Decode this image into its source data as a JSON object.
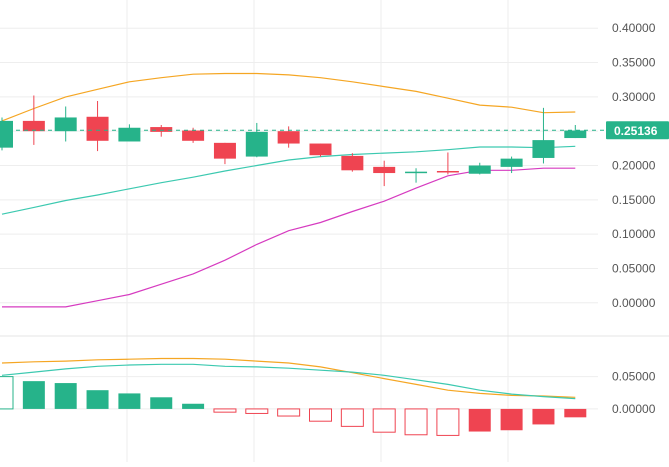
{
  "colors": {
    "up": "#26b38a",
    "down": "#ef4451",
    "upper_band": "#f5a623",
    "middle_band": "#3cc9b0",
    "lower_band": "#d63bc0",
    "grid": "#eeeeee",
    "axis_text": "#555555",
    "price_tag_bg": "#26b38a",
    "price_tag_text": "#ffffff",
    "macd_line": "#f5a623",
    "signal_line": "#3cc9b0"
  },
  "chart_data": [
    {
      "type": "candlestick",
      "panel": "price",
      "y_tick_labels": [
        "0.40000",
        "0.35000",
        "0.30000",
        "0.25000",
        "0.20000",
        "0.15000",
        "0.10000",
        "0.05000",
        "0.00000"
      ],
      "ylim": [
        -0.012,
        0.412
      ],
      "current_price_label": "0.25136",
      "current_price": 0.25136,
      "grid": true,
      "candles": [
        {
          "open": 0.226,
          "close": 0.265,
          "high": 0.27,
          "low": 0.222
        },
        {
          "open": 0.265,
          "close": 0.25,
          "high": 0.302,
          "low": 0.23
        },
        {
          "open": 0.25,
          "close": 0.27,
          "high": 0.286,
          "low": 0.235
        },
        {
          "open": 0.271,
          "close": 0.236,
          "high": 0.294,
          "low": 0.221
        },
        {
          "open": 0.235,
          "close": 0.255,
          "high": 0.26,
          "low": 0.235
        },
        {
          "open": 0.256,
          "close": 0.249,
          "high": 0.259,
          "low": 0.242
        },
        {
          "open": 0.251,
          "close": 0.236,
          "high": 0.255,
          "low": 0.233
        },
        {
          "open": 0.233,
          "close": 0.21,
          "high": 0.233,
          "low": 0.202
        },
        {
          "open": 0.213,
          "close": 0.249,
          "high": 0.262,
          "low": 0.212
        },
        {
          "open": 0.25,
          "close": 0.232,
          "high": 0.257,
          "low": 0.226
        },
        {
          "open": 0.232,
          "close": 0.215,
          "high": 0.232,
          "low": 0.213
        },
        {
          "open": 0.214,
          "close": 0.193,
          "high": 0.218,
          "low": 0.191
        },
        {
          "open": 0.198,
          "close": 0.189,
          "high": 0.207,
          "low": 0.17
        },
        {
          "open": 0.19,
          "close": 0.191,
          "high": 0.196,
          "low": 0.175
        },
        {
          "open": 0.192,
          "close": 0.19,
          "high": 0.219,
          "low": 0.187
        },
        {
          "open": 0.188,
          "close": 0.2,
          "high": 0.204,
          "low": 0.187
        },
        {
          "open": 0.198,
          "close": 0.21,
          "high": 0.213,
          "low": 0.189
        },
        {
          "open": 0.211,
          "close": 0.237,
          "high": 0.284,
          "low": 0.203
        },
        {
          "open": 0.24,
          "close": 0.251,
          "high": 0.259,
          "low": 0.24
        }
      ],
      "bollinger": {
        "upper": [
          0.265,
          0.283,
          0.3,
          0.311,
          0.322,
          0.328,
          0.333,
          0.334,
          0.334,
          0.332,
          0.328,
          0.322,
          0.315,
          0.308,
          0.298,
          0.288,
          0.285,
          0.277,
          0.278
        ],
        "middle": [
          0.129,
          0.139,
          0.149,
          0.157,
          0.166,
          0.175,
          0.183,
          0.192,
          0.2,
          0.208,
          0.213,
          0.216,
          0.218,
          0.22,
          0.223,
          0.227,
          0.227,
          0.226,
          0.228
        ],
        "lower": [
          -0.006,
          -0.006,
          -0.006,
          0.003,
          0.012,
          0.027,
          0.042,
          0.062,
          0.085,
          0.105,
          0.117,
          0.133,
          0.148,
          0.167,
          0.185,
          0.193,
          0.193,
          0.196,
          0.196
        ]
      }
    },
    {
      "type": "histogram",
      "panel": "macd",
      "y_tick_labels": [
        "0.05000",
        "0.00000"
      ],
      "ylim": [
        -0.045,
        0.085
      ],
      "histogram": [
        0.05,
        0.043,
        0.04,
        0.029,
        0.024,
        0.018,
        0.008,
        -0.005,
        -0.007,
        -0.011,
        -0.019,
        -0.027,
        -0.036,
        -0.04,
        -0.041,
        -0.035,
        -0.033,
        -0.024,
        -0.013
      ],
      "macd_line": [
        0.052,
        0.057,
        0.062,
        0.066,
        0.068,
        0.069,
        0.069,
        0.066,
        0.065,
        0.063,
        0.06,
        0.057,
        0.052,
        0.045,
        0.038,
        0.029,
        0.023,
        0.019,
        0.016
      ],
      "signal_line": [
        0.071,
        0.073,
        0.074,
        0.076,
        0.077,
        0.078,
        0.078,
        0.077,
        0.074,
        0.071,
        0.065,
        0.056,
        0.047,
        0.038,
        0.029,
        0.024,
        0.021,
        0.02,
        0.018
      ]
    }
  ]
}
